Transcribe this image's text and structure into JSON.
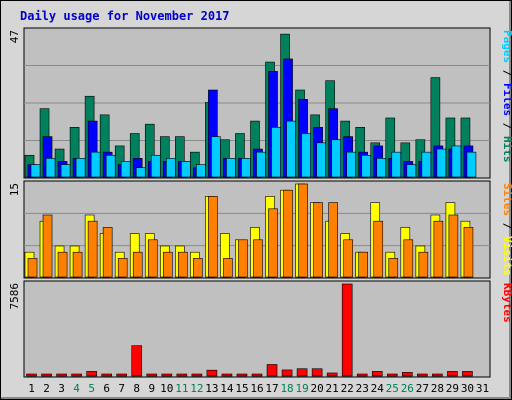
{
  "chart_data": {
    "type": "bar",
    "title": "Daily usage for November 2017",
    "categories": [
      "1",
      "2",
      "3",
      "4",
      "5",
      "6",
      "7",
      "8",
      "9",
      "10",
      "11",
      "12",
      "13",
      "14",
      "15",
      "16",
      "17",
      "18",
      "19",
      "20",
      "21",
      "22",
      "23",
      "24",
      "25",
      "26",
      "27",
      "28",
      "29",
      "30",
      "31"
    ],
    "weekend_days": [
      4,
      5,
      11,
      12,
      18,
      19,
      25,
      26
    ],
    "colors": {
      "title": "#0000cc",
      "hits": "#00805c",
      "files": "#0000ff",
      "pages": "#00ccff",
      "visits": "#ffff00",
      "sites": "#ff8000",
      "kbytes": "#ff0000",
      "weekend_label": "#00805c",
      "weekday_label": "#000000",
      "plot_bg": "#c0c0c0",
      "frame_bg": "#d6d6d6"
    },
    "panels": [
      {
        "name": "pages-files-hits",
        "max_label": "47",
        "ylim": [
          0,
          47
        ],
        "axis_labels": [
          {
            "text": "Pages",
            "color": "#00ccff"
          },
          {
            "text": " / ",
            "color": "#000000"
          },
          {
            "text": "Files",
            "color": "#0000ff"
          },
          {
            "text": " / ",
            "color": "#000000"
          },
          {
            "text": "Hits",
            "color": "#00805c"
          }
        ],
        "series": [
          {
            "name": "Hits",
            "color": "#00805c",
            "values": [
              7,
              22,
              9,
              16,
              26,
              20,
              10,
              14,
              17,
              13,
              13,
              8,
              24,
              12,
              14,
              18,
              37,
              46,
              28,
              20,
              31,
              18,
              16,
              11,
              19,
              11,
              12,
              32,
              19,
              19,
              0
            ]
          },
          {
            "name": "Files",
            "color": "#0000ff",
            "values": [
              4,
              13,
              5,
              6,
              18,
              8,
              4,
              6,
              5,
              5,
              5,
              3,
              28,
              6,
              6,
              9,
              34,
              38,
              25,
              16,
              22,
              13,
              8,
              10,
              6,
              5,
              5,
              10,
              9,
              10,
              0
            ]
          },
          {
            "name": "Pages",
            "color": "#00ccff",
            "values": [
              4,
              6,
              4,
              6,
              8,
              7,
              5,
              3,
              7,
              6,
              5,
              4,
              13,
              6,
              6,
              8,
              16,
              18,
              14,
              11,
              12,
              8,
              7,
              6,
              8,
              4,
              8,
              9,
              10,
              8,
              0
            ]
          }
        ]
      },
      {
        "name": "sites-visits",
        "max_label": "15",
        "ylim": [
          0,
          15
        ],
        "axis_labels": [
          {
            "text": "Sites",
            "color": "#ff8000"
          },
          {
            "text": " / ",
            "color": "#000000"
          },
          {
            "text": "Visits",
            "color": "#ffff00"
          }
        ],
        "series": [
          {
            "name": "Visits",
            "color": "#ffff00",
            "values": [
              4,
              9,
              5,
              5,
              10,
              7,
              4,
              7,
              7,
              5,
              5,
              4,
              13,
              7,
              6,
              8,
              13,
              14,
              15,
              12,
              9,
              7,
              4,
              12,
              4,
              8,
              5,
              10,
              12,
              9,
              0
            ]
          },
          {
            "name": "Sites",
            "color": "#ff8000",
            "values": [
              3,
              10,
              4,
              4,
              9,
              8,
              3,
              4,
              6,
              4,
              4,
              3,
              13,
              3,
              6,
              6,
              11,
              14,
              15,
              12,
              12,
              6,
              4,
              9,
              3,
              6,
              4,
              9,
              10,
              8,
              0
            ]
          }
        ]
      },
      {
        "name": "kbytes",
        "max_label": "7586",
        "ylim": [
          0,
          7586
        ],
        "axis_labels": [
          {
            "text": "KBytes",
            "color": "#ff0000"
          }
        ],
        "series": [
          {
            "name": "KBytes",
            "color": "#ff0000",
            "values": [
              80,
              150,
              150,
              150,
              380,
              150,
              150,
              2500,
              150,
              150,
              150,
              150,
              480,
              150,
              150,
              150,
              950,
              500,
              600,
              600,
              250,
              7586,
              150,
              380,
              150,
              300,
              150,
              150,
              380,
              380,
              0
            ]
          }
        ]
      }
    ]
  }
}
